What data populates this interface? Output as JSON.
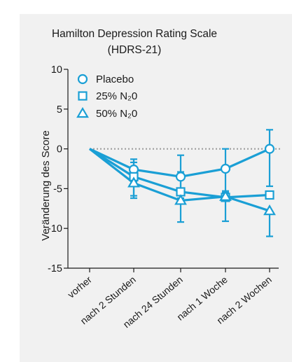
{
  "chart_data": {
    "type": "line",
    "title": "Hamilton Depression Rating Scale",
    "subtitle": "(HDRS-21)",
    "xlabel": "",
    "ylabel": "Veränderung des Score",
    "ylim": [
      -15,
      10
    ],
    "yticks": [
      10,
      5,
      0,
      -5,
      -10,
      -15
    ],
    "ytick_labels": [
      "10",
      "5",
      "0",
      "-5",
      "-10",
      "-15"
    ],
    "categories": [
      "vorher",
      "nach 2 Stunden",
      "nach 24 Stunden",
      "nach 1 Woche",
      "nach 2 Wochen"
    ],
    "zero_line": "dotted",
    "grid": false,
    "legend_position": "top-left",
    "color": "#1a9fd5",
    "series": [
      {
        "name": "Placebo",
        "marker": "circle",
        "values": [
          0,
          -2.6,
          -3.5,
          -2.5,
          0
        ],
        "error_upper": [
          null,
          -1.3,
          -0.8,
          0,
          2.4
        ],
        "error_lower": [
          null,
          -4.1,
          -6.2,
          -5.3,
          -4.7
        ]
      },
      {
        "name": "25% N₂0",
        "marker": "square",
        "values": [
          0,
          -3.5,
          -5.4,
          -6.1,
          -5.8
        ],
        "error_upper": [
          null,
          -1.7,
          null,
          null,
          null
        ],
        "error_lower": [
          null,
          -5.9,
          null,
          null,
          null
        ]
      },
      {
        "name": "50% N₂0",
        "marker": "triangle",
        "values": [
          0,
          -4.3,
          -6.5,
          -6.0,
          -7.8
        ],
        "error_upper": [
          null,
          null,
          -2.9,
          -5.5,
          null
        ],
        "error_lower": [
          null,
          -6.2,
          -9.2,
          -9.1,
          -11.0
        ]
      }
    ]
  }
}
